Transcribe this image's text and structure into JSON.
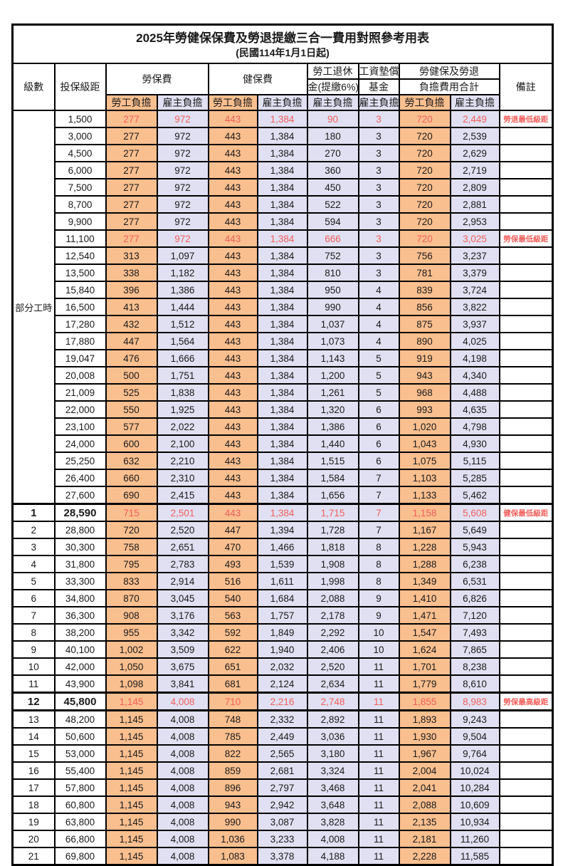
{
  "title": "2025年勞健保保費及勞退提繳三合一費用對照參考用表",
  "subtitle": "(民國114年1月1日起)",
  "header": {
    "grade": "級數",
    "bracket": "投保級距",
    "labor_ins": "勞保費",
    "health_ins": "健保費",
    "pension_line1": "勞工退休",
    "pension_line2": "金(提繳6%)",
    "wage_fund_line1": "工資墊償",
    "wage_fund_line2": "基金",
    "total_line1": "勞健保及勞退",
    "total_line2": "負擔費用合計",
    "note": "備註",
    "employee": "勞工負擔",
    "employer": "雇主負擔"
  },
  "part_time_label": "部分工時",
  "part_time_rowspan": 23,
  "colors": {
    "employee_bg": "#FABF8F",
    "employer_bg": "#E0E0F2",
    "highlight_red": "#F0605C",
    "border": "#000000"
  },
  "rows": [
    {
      "bracket": "1,500",
      "v": [
        "277",
        "972",
        "443",
        "1,384",
        "90",
        "3",
        "720",
        "2,449"
      ],
      "note": "勞退最低級距",
      "red": true
    },
    {
      "bracket": "3,000",
      "v": [
        "277",
        "972",
        "443",
        "1,384",
        "180",
        "3",
        "720",
        "2,539"
      ]
    },
    {
      "bracket": "4,500",
      "v": [
        "277",
        "972",
        "443",
        "1,384",
        "270",
        "3",
        "720",
        "2,629"
      ]
    },
    {
      "bracket": "6,000",
      "v": [
        "277",
        "972",
        "443",
        "1,384",
        "360",
        "3",
        "720",
        "2,719"
      ]
    },
    {
      "bracket": "7,500",
      "v": [
        "277",
        "972",
        "443",
        "1,384",
        "450",
        "3",
        "720",
        "2,809"
      ]
    },
    {
      "bracket": "8,700",
      "v": [
        "277",
        "972",
        "443",
        "1,384",
        "522",
        "3",
        "720",
        "2,881"
      ]
    },
    {
      "bracket": "9,900",
      "v": [
        "277",
        "972",
        "443",
        "1,384",
        "594",
        "3",
        "720",
        "2,953"
      ]
    },
    {
      "bracket": "11,100",
      "v": [
        "277",
        "972",
        "443",
        "1,384",
        "666",
        "3",
        "720",
        "3,025"
      ],
      "note": "勞保最低級距",
      "red": true
    },
    {
      "bracket": "12,540",
      "v": [
        "313",
        "1,097",
        "443",
        "1,384",
        "752",
        "3",
        "756",
        "3,237"
      ]
    },
    {
      "bracket": "13,500",
      "v": [
        "338",
        "1,182",
        "443",
        "1,384",
        "810",
        "3",
        "781",
        "3,379"
      ]
    },
    {
      "bracket": "15,840",
      "v": [
        "396",
        "1,386",
        "443",
        "1,384",
        "950",
        "4",
        "839",
        "3,724"
      ]
    },
    {
      "bracket": "16,500",
      "v": [
        "413",
        "1,444",
        "443",
        "1,384",
        "990",
        "4",
        "856",
        "3,822"
      ]
    },
    {
      "bracket": "17,280",
      "v": [
        "432",
        "1,512",
        "443",
        "1,384",
        "1,037",
        "4",
        "875",
        "3,937"
      ]
    },
    {
      "bracket": "17,880",
      "v": [
        "447",
        "1,564",
        "443",
        "1,384",
        "1,073",
        "4",
        "890",
        "4,025"
      ]
    },
    {
      "bracket": "19,047",
      "v": [
        "476",
        "1,666",
        "443",
        "1,384",
        "1,143",
        "5",
        "919",
        "4,198"
      ]
    },
    {
      "bracket": "20,008",
      "v": [
        "500",
        "1,751",
        "443",
        "1,384",
        "1,200",
        "5",
        "943",
        "4,340"
      ]
    },
    {
      "bracket": "21,009",
      "v": [
        "525",
        "1,838",
        "443",
        "1,384",
        "1,261",
        "5",
        "968",
        "4,488"
      ]
    },
    {
      "bracket": "22,000",
      "v": [
        "550",
        "1,925",
        "443",
        "1,384",
        "1,320",
        "6",
        "993",
        "4,635"
      ]
    },
    {
      "bracket": "23,100",
      "v": [
        "577",
        "2,022",
        "443",
        "1,384",
        "1,386",
        "6",
        "1,020",
        "4,798"
      ]
    },
    {
      "bracket": "24,000",
      "v": [
        "600",
        "2,100",
        "443",
        "1,384",
        "1,440",
        "6",
        "1,043",
        "4,930"
      ]
    },
    {
      "bracket": "25,250",
      "v": [
        "632",
        "2,210",
        "443",
        "1,384",
        "1,515",
        "6",
        "1,075",
        "5,115"
      ]
    },
    {
      "bracket": "26,400",
      "v": [
        "660",
        "2,310",
        "443",
        "1,384",
        "1,584",
        "7",
        "1,103",
        "5,285"
      ]
    },
    {
      "bracket": "27,600",
      "v": [
        "690",
        "2,415",
        "443",
        "1,384",
        "1,656",
        "7",
        "1,133",
        "5,462"
      ]
    },
    {
      "grade": "1",
      "bracket": "28,590",
      "v": [
        "715",
        "2,501",
        "443",
        "1,384",
        "1,715",
        "7",
        "1,158",
        "5,608"
      ],
      "note": "健保最低級距",
      "red": true,
      "bold": true,
      "thick_top": true
    },
    {
      "grade": "2",
      "bracket": "28,800",
      "v": [
        "720",
        "2,520",
        "447",
        "1,394",
        "1,728",
        "7",
        "1,167",
        "5,649"
      ]
    },
    {
      "grade": "3",
      "bracket": "30,300",
      "v": [
        "758",
        "2,651",
        "470",
        "1,466",
        "1,818",
        "8",
        "1,228",
        "5,943"
      ]
    },
    {
      "grade": "4",
      "bracket": "31,800",
      "v": [
        "795",
        "2,783",
        "493",
        "1,539",
        "1,908",
        "8",
        "1,288",
        "6,238"
      ]
    },
    {
      "grade": "5",
      "bracket": "33,300",
      "v": [
        "833",
        "2,914",
        "516",
        "1,611",
        "1,998",
        "8",
        "1,349",
        "6,531"
      ]
    },
    {
      "grade": "6",
      "bracket": "34,800",
      "v": [
        "870",
        "3,045",
        "540",
        "1,684",
        "2,088",
        "9",
        "1,410",
        "6,826"
      ]
    },
    {
      "grade": "7",
      "bracket": "36,300",
      "v": [
        "908",
        "3,176",
        "563",
        "1,757",
        "2,178",
        "9",
        "1,471",
        "7,120"
      ]
    },
    {
      "grade": "8",
      "bracket": "38,200",
      "v": [
        "955",
        "3,342",
        "592",
        "1,849",
        "2,292",
        "10",
        "1,547",
        "7,493"
      ]
    },
    {
      "grade": "9",
      "bracket": "40,100",
      "v": [
        "1,002",
        "3,509",
        "622",
        "1,940",
        "2,406",
        "10",
        "1,624",
        "7,865"
      ]
    },
    {
      "grade": "10",
      "bracket": "42,000",
      "v": [
        "1,050",
        "3,675",
        "651",
        "2,032",
        "2,520",
        "11",
        "1,701",
        "8,238"
      ]
    },
    {
      "grade": "11",
      "bracket": "43,900",
      "v": [
        "1,098",
        "3,841",
        "681",
        "2,124",
        "2,634",
        "11",
        "1,779",
        "8,610"
      ]
    },
    {
      "grade": "12",
      "bracket": "45,800",
      "v": [
        "1,145",
        "4,008",
        "710",
        "2,216",
        "2,748",
        "11",
        "1,855",
        "8,983"
      ],
      "note": "勞保最高級距",
      "red": true,
      "bold": true,
      "thick_top": true,
      "thick_bottom": true
    },
    {
      "grade": "13",
      "bracket": "48,200",
      "v": [
        "1,145",
        "4,008",
        "748",
        "2,332",
        "2,892",
        "11",
        "1,893",
        "9,243"
      ]
    },
    {
      "grade": "14",
      "bracket": "50,600",
      "v": [
        "1,145",
        "4,008",
        "785",
        "2,449",
        "3,036",
        "11",
        "1,930",
        "9,504"
      ]
    },
    {
      "grade": "15",
      "bracket": "53,000",
      "v": [
        "1,145",
        "4,008",
        "822",
        "2,565",
        "3,180",
        "11",
        "1,967",
        "9,764"
      ]
    },
    {
      "grade": "16",
      "bracket": "55,400",
      "v": [
        "1,145",
        "4,008",
        "859",
        "2,681",
        "3,324",
        "11",
        "2,004",
        "10,024"
      ]
    },
    {
      "grade": "17",
      "bracket": "57,800",
      "v": [
        "1,145",
        "4,008",
        "896",
        "2,797",
        "3,468",
        "11",
        "2,041",
        "10,284"
      ]
    },
    {
      "grade": "18",
      "bracket": "60,800",
      "v": [
        "1,145",
        "4,008",
        "943",
        "2,942",
        "3,648",
        "11",
        "2,088",
        "10,609"
      ]
    },
    {
      "grade": "19",
      "bracket": "63,800",
      "v": [
        "1,145",
        "4,008",
        "990",
        "3,087",
        "3,828",
        "11",
        "2,135",
        "10,934"
      ]
    },
    {
      "grade": "20",
      "bracket": "66,800",
      "v": [
        "1,145",
        "4,008",
        "1,036",
        "3,233",
        "4,008",
        "11",
        "2,181",
        "11,260"
      ]
    },
    {
      "grade": "21",
      "bracket": "69,800",
      "v": [
        "1,145",
        "4,008",
        "1,083",
        "3,378",
        "4,188",
        "11",
        "2,228",
        "11,585"
      ]
    }
  ]
}
